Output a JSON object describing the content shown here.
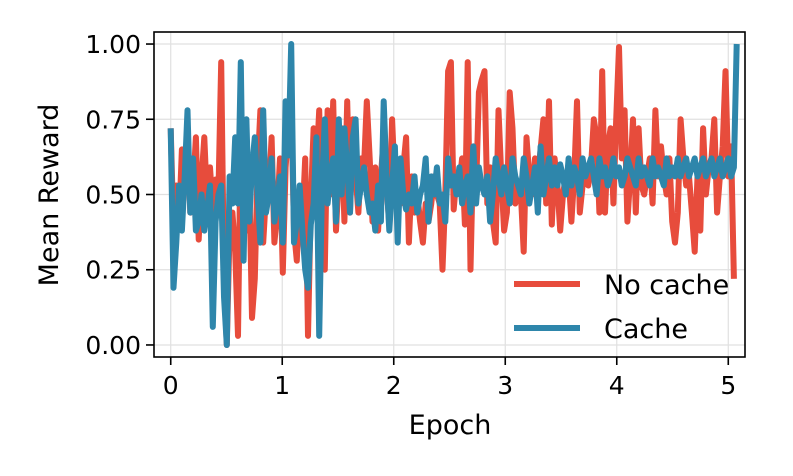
{
  "chart_data": {
    "type": "line",
    "xlabel": "Epoch",
    "ylabel": "Mean Reward",
    "xlim": [
      -0.15,
      5.15
    ],
    "ylim": [
      -0.04,
      1.04
    ],
    "x_ticks": [
      0,
      1,
      2,
      3,
      4,
      5
    ],
    "x_tick_labels": [
      "0",
      "1",
      "2",
      "3",
      "4",
      "5"
    ],
    "y_ticks": [
      0.0,
      0.25,
      0.5,
      0.75,
      1.0
    ],
    "y_tick_labels": [
      "0.00",
      "0.25",
      "0.50",
      "0.75",
      "1.00"
    ],
    "grid": true,
    "legend_position": "lower-right",
    "x_start": 0,
    "x_step": 0.0251256,
    "series": [
      {
        "name": "No cache",
        "color": "#e74c3c",
        "values": [
          0.72,
          0.38,
          0.53,
          0.41,
          0.65,
          0.56,
          0.69,
          0.44,
          0.52,
          0.69,
          0.35,
          0.55,
          0.69,
          0.47,
          0.59,
          0.45,
          0.55,
          0.5,
          0.94,
          0.22,
          0.0,
          0.38,
          0.44,
          0.31,
          0.03,
          0.72,
          0.53,
          0.38,
          0.56,
          0.09,
          0.22,
          0.59,
          0.78,
          0.34,
          0.5,
          0.5,
          0.69,
          0.34,
          0.44,
          0.62,
          0.24,
          0.59,
          0.72,
          0.81,
          0.38,
          0.28,
          0.5,
          0.41,
          0.62,
          0.03,
          0.47,
          0.72,
          0.59,
          0.78,
          0.38,
          0.25,
          0.78,
          0.5,
          0.81,
          0.38,
          0.56,
          0.72,
          0.41,
          0.81,
          0.44,
          0.75,
          0.56,
          0.44,
          0.62,
          0.59,
          0.81,
          0.62,
          0.41,
          0.59,
          0.38,
          0.56,
          0.69,
          0.53,
          0.4,
          0.75,
          0.53,
          0.56,
          0.47,
          0.59,
          0.69,
          0.34,
          0.56,
          0.44,
          0.5,
          0.41,
          0.34,
          0.47,
          0.41,
          0.47,
          0.56,
          0.5,
          0.47,
          0.25,
          0.5,
          0.91,
          0.94,
          0.45,
          0.56,
          0.53,
          0.62,
          0.4,
          0.94,
          0.25,
          0.66,
          0.52,
          0.84,
          0.88,
          0.91,
          0.47,
          0.59,
          0.41,
          0.34,
          0.78,
          0.56,
          0.38,
          0.44,
          0.84,
          0.72,
          0.47,
          0.5,
          0.5,
          0.31,
          0.69,
          0.56,
          0.5,
          0.62,
          0.56,
          0.65,
          0.75,
          0.47,
          0.81,
          0.4,
          0.62,
          0.53,
          0.38,
          0.5,
          0.56,
          0.56,
          0.41,
          0.56,
          0.81,
          0.44,
          0.53,
          0.59,
          0.53,
          0.59,
          0.75,
          0.69,
          0.44,
          0.91,
          0.44,
          0.66,
          0.72,
          0.47,
          0.75,
          0.99,
          0.62,
          0.78,
          0.41,
          0.56,
          0.75,
          0.44,
          0.72,
          0.53,
          0.5,
          0.56,
          0.62,
          0.47,
          0.78,
          0.56,
          0.66,
          0.56,
          0.5,
          0.62,
          0.41,
          0.34,
          0.44,
          0.75,
          0.62,
          0.53,
          0.56,
          0.44,
          0.31,
          0.56,
          0.38,
          0.72,
          0.5,
          0.59,
          0.62,
          0.75,
          0.44,
          0.56,
          0.66,
          0.91,
          0.56,
          0.66,
          0.22
        ]
      },
      {
        "name": "Cache",
        "color": "#2e86ab",
        "values": [
          0.72,
          0.19,
          0.34,
          0.53,
          0.38,
          0.56,
          0.78,
          0.44,
          0.62,
          0.38,
          0.41,
          0.5,
          0.38,
          0.45,
          0.53,
          0.06,
          0.41,
          0.5,
          0.53,
          0.16,
          0.0,
          0.56,
          0.47,
          0.69,
          0.47,
          0.94,
          0.28,
          0.75,
          0.41,
          0.59,
          0.69,
          0.5,
          0.34,
          0.78,
          0.44,
          0.5,
          0.62,
          0.41,
          0.47,
          0.56,
          0.34,
          0.81,
          0.63,
          1.0,
          0.34,
          0.41,
          0.53,
          0.38,
          0.25,
          0.19,
          0.4,
          0.47,
          0.69,
          0.03,
          0.53,
          0.75,
          0.47,
          0.56,
          0.62,
          0.41,
          0.75,
          0.5,
          0.72,
          0.59,
          0.44,
          0.69,
          0.75,
          0.47,
          0.53,
          0.59,
          0.5,
          0.44,
          0.47,
          0.38,
          0.53,
          0.41,
          0.81,
          0.56,
          0.38,
          0.53,
          0.66,
          0.34,
          0.62,
          0.5,
          0.45,
          0.5,
          0.47,
          0.56,
          0.44,
          0.5,
          0.53,
          0.62,
          0.41,
          0.56,
          0.5,
          0.59,
          0.47,
          0.5,
          0.41,
          0.62,
          0.53,
          0.56,
          0.5,
          0.59,
          0.47,
          0.53,
          0.56,
          0.44,
          0.66,
          0.47,
          0.59,
          0.53,
          0.5,
          0.56,
          0.41,
          0.5,
          0.62,
          0.56,
          0.5,
          0.59,
          0.53,
          0.47,
          0.62,
          0.56,
          0.53,
          0.5,
          0.62,
          0.56,
          0.47,
          0.53,
          0.59,
          0.44,
          0.66,
          0.5,
          0.56,
          0.62,
          0.53,
          0.59,
          0.53,
          0.6,
          0.56,
          0.5,
          0.62,
          0.53,
          0.59,
          0.56,
          0.5,
          0.62,
          0.56,
          0.59,
          0.62,
          0.56,
          0.5,
          0.62,
          0.56,
          0.59,
          0.53,
          0.56,
          0.62,
          0.56,
          0.59,
          0.53,
          0.56,
          0.62,
          0.59,
          0.56,
          0.53,
          0.62,
          0.56,
          0.59,
          0.56,
          0.53,
          0.62,
          0.56,
          0.59,
          0.56,
          0.53,
          0.62,
          0.56,
          0.59,
          0.56,
          0.62,
          0.56,
          0.59,
          0.62,
          0.56,
          0.59,
          0.62,
          0.56,
          0.59,
          0.62,
          0.56,
          0.59,
          0.62,
          0.56,
          0.59,
          0.62,
          0.56,
          0.59,
          0.62,
          0.56,
          0.59,
          1.0
        ]
      }
    ]
  }
}
